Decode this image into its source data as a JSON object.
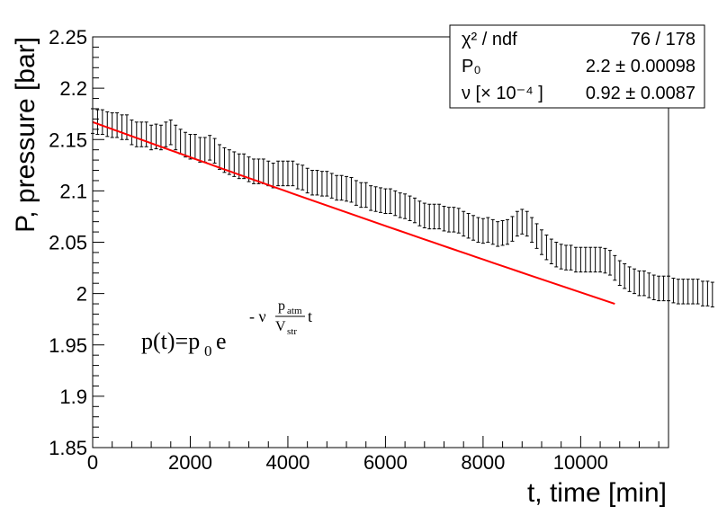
{
  "chart_data": {
    "type": "scatter",
    "title": "",
    "xlabel": "t, time [min]",
    "ylabel": "P, pressure [bar]",
    "xlim": [
      0,
      11800
    ],
    "ylim": [
      1.85,
      2.25
    ],
    "x_tick_labels": [
      "0",
      "2000",
      "4000",
      "6000",
      "8000",
      "10000"
    ],
    "y_tick_labels": [
      "1.85",
      "1.9",
      "1.95",
      "2",
      "2.05",
      "2.1",
      "2.15",
      "2.2",
      "2.25"
    ],
    "grid": false,
    "error_half_width": 0.012,
    "points_x_start": 0,
    "points_x_step": 100,
    "points_y": [
      2.168,
      2.167,
      2.167,
      2.165,
      2.164,
      2.164,
      2.162,
      2.162,
      2.157,
      2.155,
      2.155,
      2.155,
      2.152,
      2.153,
      2.152,
      2.155,
      2.157,
      2.152,
      2.148,
      2.145,
      2.143,
      2.143,
      2.14,
      2.14,
      2.142,
      2.139,
      2.133,
      2.13,
      2.128,
      2.126,
      2.124,
      2.124,
      2.121,
      2.119,
      2.119,
      2.119,
      2.117,
      2.115,
      2.117,
      2.117,
      2.117,
      2.117,
      2.114,
      2.113,
      2.11,
      2.108,
      2.108,
      2.107,
      2.107,
      2.105,
      2.103,
      2.103,
      2.102,
      2.101,
      2.098,
      2.096,
      2.096,
      2.093,
      2.092,
      2.091,
      2.09,
      2.09,
      2.088,
      2.086,
      2.085,
      2.083,
      2.081,
      2.078,
      2.076,
      2.075,
      2.075,
      2.075,
      2.073,
      2.072,
      2.072,
      2.071,
      2.068,
      2.066,
      2.064,
      2.062,
      2.061,
      2.062,
      2.06,
      2.058,
      2.059,
      2.06,
      2.063,
      2.068,
      2.07,
      2.068,
      2.062,
      2.056,
      2.05,
      2.045,
      2.041,
      2.038,
      2.036,
      2.035,
      2.035,
      2.033,
      2.033,
      2.033,
      2.033,
      2.033,
      2.033,
      2.032,
      2.03,
      2.025,
      2.02,
      2.017,
      2.014,
      2.012,
      2.01,
      2.01,
      2.008,
      2.006,
      2.005,
      2.005,
      2.005,
      2.003,
      2.002,
      2.002,
      2.002,
      2.002,
      2.002,
      2.0,
      2.0,
      1.999
    ],
    "fit": {
      "label": "P0 · exp(−ν · (p_atm / V_str) · t)",
      "color": "#ff0000",
      "x_range": [
        0,
        10700
      ],
      "y_start": 2.167,
      "y_end": 1.99
    },
    "stats_box": {
      "rows": [
        {
          "label": "χ² / ndf",
          "value": "76 / 178"
        },
        {
          "label": "P₀",
          "value": "2.2 ± 0.00098"
        },
        {
          "label": "ν [× 10⁻⁴ ]",
          "value": "0.92 ± 0.0087"
        }
      ]
    },
    "annotation": {
      "lhs": "p(t)=p",
      "sub0": "0",
      "e": " e",
      "exp_prefix": "- ν",
      "frac_num": "p",
      "frac_num_sub": "atm",
      "frac_den": "V",
      "frac_den_sub": "str",
      "exp_suffix": "t"
    }
  }
}
